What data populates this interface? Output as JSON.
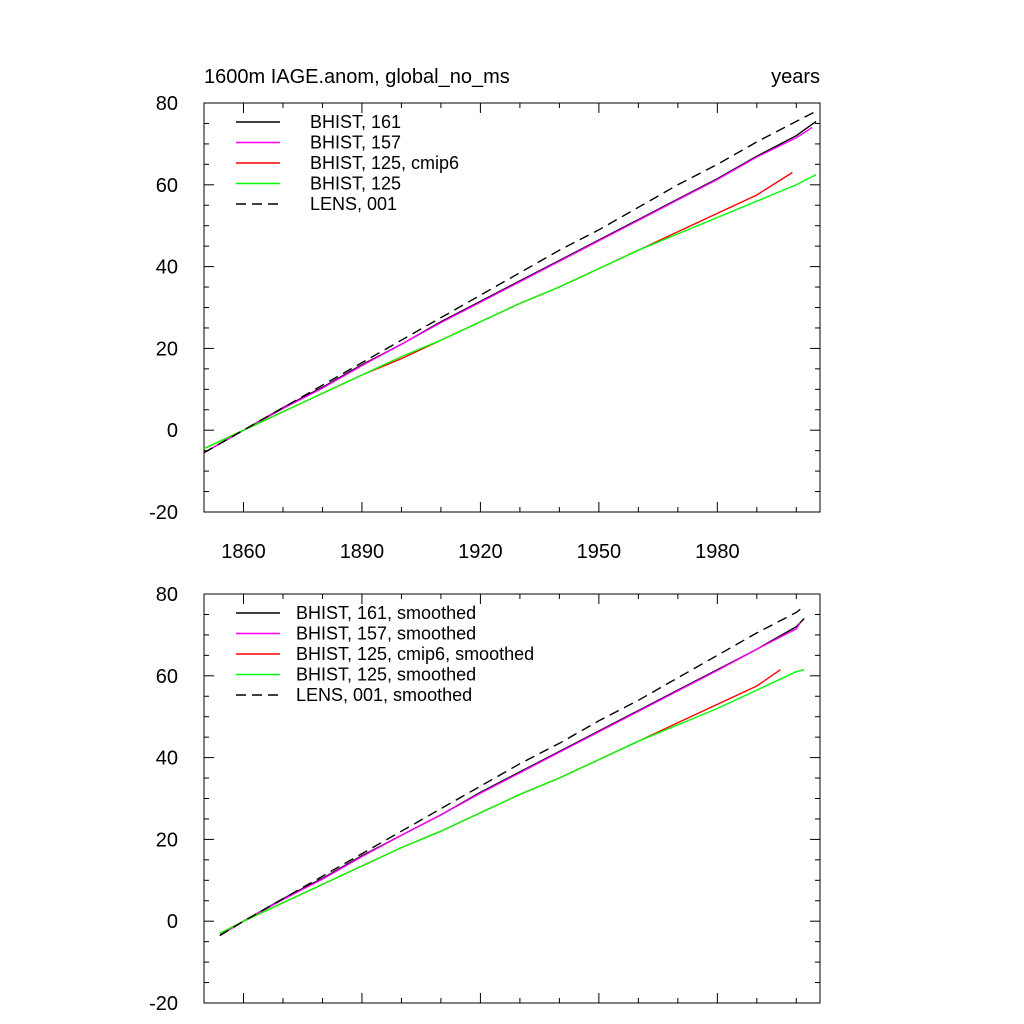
{
  "chart_data": [
    {
      "type": "line",
      "title": "1600m IAGE.anom, global_no_ms",
      "units": "years",
      "xlim": [
        1850,
        2006
      ],
      "ylim": [
        -20,
        80
      ],
      "xticks": [
        1860,
        1890,
        1920,
        1950,
        1980
      ],
      "yticks": [
        -20,
        0,
        20,
        40,
        60,
        80
      ],
      "legend_position": "top-left",
      "grid": false,
      "series": [
        {
          "name": "BHIST, 161",
          "color": "#000000",
          "dash": "solid",
          "x": [
            1850,
            1860,
            1870,
            1880,
            1890,
            1900,
            1910,
            1920,
            1930,
            1940,
            1950,
            1960,
            1970,
            1980,
            1990,
            2000,
            2005
          ],
          "y": [
            -5.5,
            0,
            5.5,
            10.5,
            16,
            21,
            26.5,
            31.5,
            36.5,
            41.5,
            46.5,
            51.5,
            56.5,
            61.5,
            67,
            72,
            75.5
          ]
        },
        {
          "name": "BHIST, 157",
          "color": "#ff00ff",
          "dash": "solid",
          "x": [
            1850,
            1860,
            1870,
            1880,
            1890,
            1900,
            1910,
            1920,
            1930,
            1940,
            1950,
            1960,
            1970,
            1980,
            1990,
            2000,
            2004
          ],
          "y": [
            -5.5,
            0,
            5.3,
            10.3,
            15.8,
            21,
            26.3,
            31.3,
            36.3,
            41.3,
            46.3,
            51.3,
            56.3,
            61.3,
            66.8,
            71.5,
            74
          ]
        },
        {
          "name": "BHIST, 125, cmip6",
          "color": "#ff0000",
          "dash": "solid",
          "x": [
            1850,
            1860,
            1870,
            1880,
            1890,
            1900,
            1910,
            1920,
            1930,
            1940,
            1950,
            1960,
            1970,
            1980,
            1990,
            1999
          ],
          "y": [
            -4.5,
            0,
            4.5,
            9,
            13.5,
            17.5,
            22,
            26.5,
            31,
            35,
            39.5,
            44,
            48.5,
            53,
            57.5,
            63
          ]
        },
        {
          "name": "BHIST, 125",
          "color": "#00ff00",
          "dash": "solid",
          "x": [
            1850,
            1860,
            1870,
            1880,
            1890,
            1900,
            1910,
            1920,
            1930,
            1940,
            1950,
            1960,
            1970,
            1980,
            1990,
            2000,
            2005
          ],
          "y": [
            -4.5,
            0,
            4.5,
            9,
            13.5,
            18,
            22,
            26.5,
            31,
            35,
            39.5,
            44,
            48,
            52,
            56,
            60,
            62.5
          ]
        },
        {
          "name": "LENS, 001",
          "color": "#000000",
          "dash": "dashed",
          "x": [
            1850,
            1860,
            1870,
            1880,
            1890,
            1900,
            1910,
            1920,
            1930,
            1940,
            1950,
            1960,
            1970,
            1980,
            1990,
            2000,
            2005
          ],
          "y": [
            -5.5,
            0,
            5.5,
            11,
            16.5,
            22,
            27.5,
            33,
            38.5,
            44,
            49,
            54.5,
            60,
            65,
            70.5,
            75.5,
            78
          ]
        }
      ]
    },
    {
      "type": "line",
      "title": "",
      "units": "",
      "xlim": [
        1850,
        2006
      ],
      "ylim": [
        -20,
        80
      ],
      "xticks": [
        1860,
        1890,
        1920,
        1950,
        1980
      ],
      "yticks": [
        -20,
        0,
        20,
        40,
        60,
        80
      ],
      "legend_position": "top-left",
      "grid": false,
      "series": [
        {
          "name": "BHIST, 161, smoothed",
          "color": "#000000",
          "dash": "solid",
          "x": [
            1854,
            1860,
            1870,
            1880,
            1890,
            1900,
            1910,
            1920,
            1930,
            1940,
            1950,
            1960,
            1970,
            1980,
            1990,
            2000,
            2002
          ],
          "y": [
            -3.5,
            0,
            5.5,
            10.5,
            16,
            21,
            26,
            31.5,
            36.5,
            41.5,
            46.5,
            51.5,
            56.5,
            61.5,
            66.5,
            72,
            74
          ]
        },
        {
          "name": "BHIST, 157, smoothed",
          "color": "#ff00ff",
          "dash": "solid",
          "x": [
            1854,
            1860,
            1870,
            1880,
            1890,
            1900,
            1910,
            1920,
            1930,
            1940,
            1950,
            1960,
            1970,
            1980,
            1990,
            2000,
            2001
          ],
          "y": [
            -3.5,
            0,
            5.3,
            10.3,
            15.8,
            21,
            26,
            31.3,
            36.3,
            41.3,
            46.3,
            51.3,
            56.3,
            61.3,
            66.5,
            71.5,
            73
          ]
        },
        {
          "name": "BHIST, 125, cmip6, smoothed",
          "color": "#ff0000",
          "dash": "solid",
          "x": [
            1854,
            1860,
            1870,
            1880,
            1890,
            1900,
            1910,
            1920,
            1930,
            1940,
            1950,
            1960,
            1970,
            1980,
            1990,
            1996
          ],
          "y": [
            -3,
            0,
            4.5,
            9,
            13.5,
            18,
            22,
            26.5,
            31,
            35,
            39.5,
            44,
            48.5,
            53,
            57.5,
            61.5
          ]
        },
        {
          "name": "BHIST, 125, smoothed",
          "color": "#00ff00",
          "dash": "solid",
          "x": [
            1854,
            1860,
            1870,
            1880,
            1890,
            1900,
            1910,
            1920,
            1930,
            1940,
            1950,
            1960,
            1970,
            1980,
            1990,
            2000,
            2002
          ],
          "y": [
            -3,
            0,
            4.5,
            9,
            13.5,
            18,
            22,
            26.5,
            31,
            35,
            39.5,
            44,
            48,
            52,
            56.5,
            61,
            61.5
          ]
        },
        {
          "name": "LENS, 001, smoothed",
          "color": "#000000",
          "dash": "dashed",
          "x": [
            1854,
            1860,
            1870,
            1880,
            1890,
            1900,
            1910,
            1920,
            1930,
            1940,
            1950,
            1960,
            1970,
            1980,
            1990,
            2000,
            2002
          ],
          "y": [
            -3.5,
            0,
            5.5,
            11,
            16.5,
            22,
            27.5,
            33,
            38.5,
            43.5,
            49,
            54,
            59.5,
            65,
            70.5,
            75.5,
            77
          ]
        }
      ]
    }
  ]
}
